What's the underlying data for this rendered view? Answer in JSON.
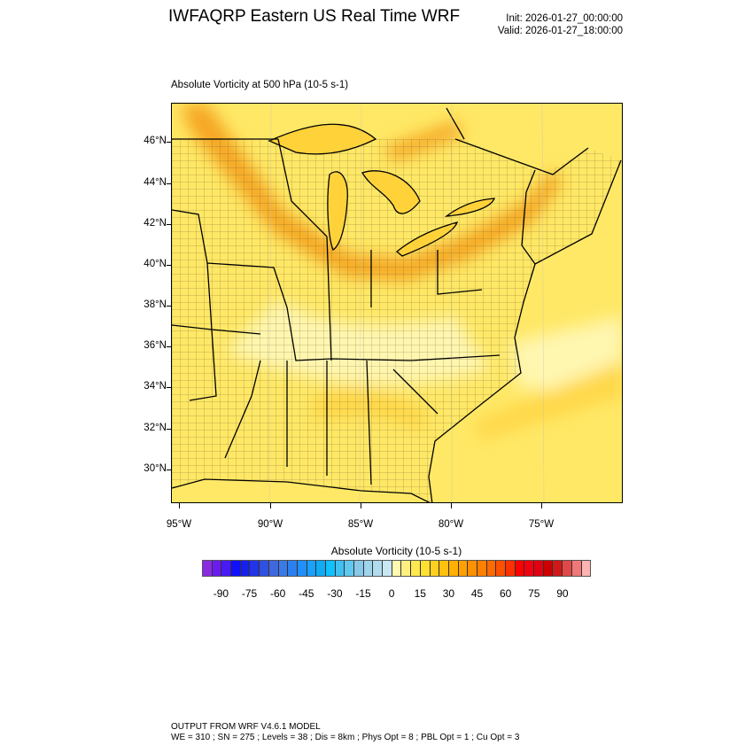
{
  "header": {
    "title": "IWFAQRP Eastern US Real Time WRF",
    "init": "Init: 2026-01-27_00:00:00",
    "valid": "Valid: 2026-01-27_18:00:00"
  },
  "plot": {
    "subtitle": "Absolute Vorticity at 500 hPa   (10-5 s-1)",
    "lat_labels": [
      "46°N",
      "44°N",
      "42°N",
      "40°N",
      "38°N",
      "36°N",
      "34°N",
      "32°N",
      "30°N"
    ],
    "lon_labels": [
      "95°W",
      "90°W",
      "85°W",
      "80°W",
      "75°W"
    ],
    "field_colors": {
      "background": "#ffe866",
      "light": "#fff6b0",
      "max": "#f5a623",
      "water": "#ffd23a"
    }
  },
  "colorbar": {
    "title": "Absolute Vorticity  (10-5 s-1)",
    "labels": [
      "-90",
      "-75",
      "-60",
      "-45",
      "-30",
      "-15",
      "0",
      "15",
      "30",
      "45",
      "60",
      "75",
      "90"
    ],
    "colors": [
      "#8a2be2",
      "#6a1cf0",
      "#4a1af5",
      "#1010ff",
      "#1520f0",
      "#2234e6",
      "#3050e0",
      "#4068de",
      "#3a7ae8",
      "#2a80f0",
      "#2090ff",
      "#1aa0ff",
      "#10aaf5",
      "#10c0ff",
      "#40c0f0",
      "#60c8f0",
      "#88c8e8",
      "#a0d4ec",
      "#b0dcf0",
      "#c8e8f4",
      "#fffab0",
      "#fff080",
      "#ffe850",
      "#ffe030",
      "#ffd020",
      "#ffc010",
      "#ffb000",
      "#ffa000",
      "#ff9000",
      "#ff8000",
      "#ff6a00",
      "#ff5000",
      "#ff3000",
      "#ff0000",
      "#f00010",
      "#e00010",
      "#cc0000",
      "#d01818",
      "#e04848",
      "#f07878",
      "#ffb4b4"
    ]
  },
  "footer": {
    "line1": "OUTPUT FROM WRF V4.6.1 MODEL",
    "line2": "WE = 310 ; SN = 275 ; Levels = 38 ; Dis = 8km ; Phys Opt = 8 ; PBL Opt = 1 ; Cu Opt = 3"
  }
}
